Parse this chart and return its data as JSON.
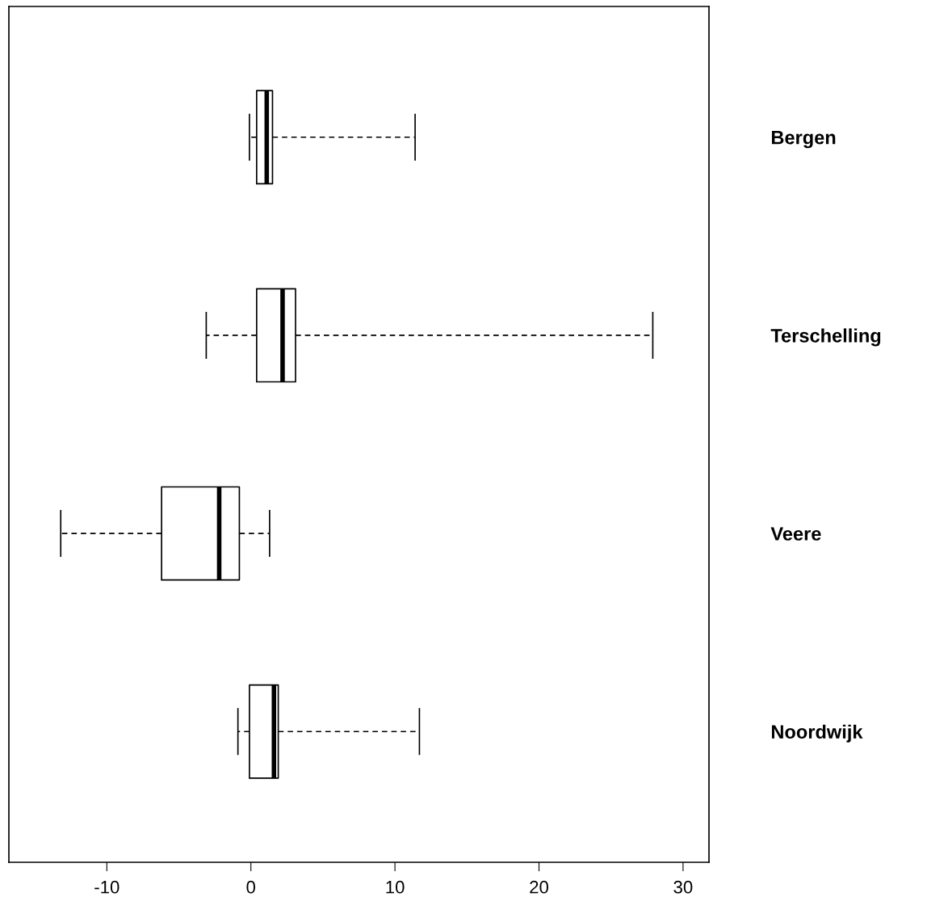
{
  "chart_data": {
    "type": "box",
    "orientation": "horizontal",
    "categories": [
      "Bergen",
      "Terschelling",
      "Veere",
      "Noordwijk"
    ],
    "boxes": [
      {
        "low": -0.1,
        "q1": 0.4,
        "median": 1.1,
        "q3": 1.5,
        "high": 11.4
      },
      {
        "low": -3.1,
        "q1": 0.4,
        "median": 2.2,
        "q3": 3.1,
        "high": 27.9
      },
      {
        "low": -13.2,
        "q1": -6.2,
        "median": -2.2,
        "q3": -0.8,
        "high": 1.3
      },
      {
        "low": -0.9,
        "q1": -0.1,
        "median": 1.6,
        "q3": 1.9,
        "high": 11.7
      }
    ],
    "xlim": [
      -16.8,
      31.8
    ],
    "xticks": [
      -10,
      0,
      10,
      20,
      30
    ],
    "grid": false
  }
}
